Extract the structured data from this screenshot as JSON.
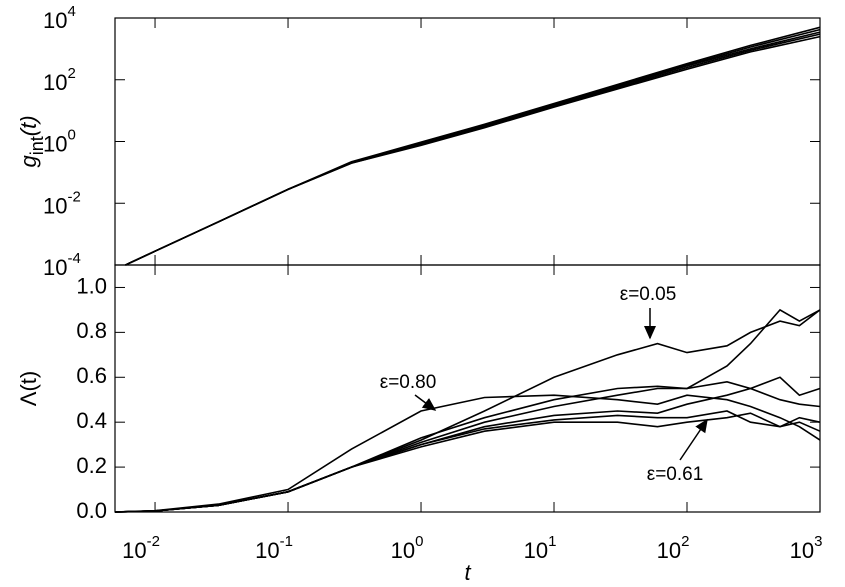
{
  "chart_data": [
    {
      "type": "line",
      "ylabel": [
        "g",
        "int",
        "(t)"
      ],
      "xlog": true,
      "ylog": true,
      "xlim": [
        0.005,
        1000
      ],
      "ylim": [
        0.0001,
        10000
      ],
      "yticks": [
        {
          "value": 0.0001,
          "label": "10",
          "exponent": "-4"
        },
        {
          "value": 0.01,
          "label": "10",
          "exponent": "-2"
        },
        {
          "value": 1,
          "label": "10",
          "exponent": "0"
        },
        {
          "value": 100,
          "label": "10",
          "exponent": "2"
        },
        {
          "value": 10000,
          "label": "10",
          "exponent": "4"
        }
      ],
      "x": [
        0.006,
        0.01,
        0.03,
        0.1,
        0.3,
        1,
        3,
        10,
        30,
        100,
        300,
        1000
      ],
      "series": [
        {
          "color": "#000000",
          "values": [
            0.0001,
            0.00028,
            0.0025,
            0.028,
            0.2,
            0.75,
            2.8,
            13,
            50,
            220,
            800,
            2500
          ]
        },
        {
          "color": "#000000",
          "values": [
            0.0001,
            0.00028,
            0.0025,
            0.028,
            0.2,
            0.8,
            3,
            14,
            55,
            250,
            900,
            3000
          ]
        },
        {
          "color": "#000000",
          "values": [
            0.0001,
            0.00028,
            0.0025,
            0.028,
            0.21,
            0.85,
            3.2,
            15,
            60,
            280,
            1000,
            3500
          ]
        },
        {
          "color": "#000000",
          "values": [
            0.0001,
            0.00028,
            0.0025,
            0.028,
            0.21,
            0.9,
            3.4,
            16,
            65,
            300,
            1150,
            4200
          ]
        },
        {
          "color": "#000000",
          "values": [
            0.0001,
            0.00028,
            0.0025,
            0.028,
            0.22,
            0.95,
            3.6,
            17,
            70,
            330,
            1300,
            5000
          ]
        }
      ]
    },
    {
      "type": "line",
      "xlabel": "t",
      "ylabel": "Λ(t)",
      "xlog": true,
      "xlim": [
        0.005,
        1000
      ],
      "ylim": [
        0,
        1.1
      ],
      "xticks": [
        {
          "value": 0.01,
          "label": "10",
          "exponent": "-2"
        },
        {
          "value": 0.1,
          "label": "10",
          "exponent": "-1"
        },
        {
          "value": 1,
          "label": "10",
          "exponent": "0"
        },
        {
          "value": 10,
          "label": "10",
          "exponent": "1"
        },
        {
          "value": 100,
          "label": "10",
          "exponent": "2"
        },
        {
          "value": 1000,
          "label": "10",
          "exponent": "3"
        }
      ],
      "yticks": [
        {
          "value": 0,
          "label": "0.0"
        },
        {
          "value": 0.2,
          "label": "0.2"
        },
        {
          "value": 0.4,
          "label": "0.4"
        },
        {
          "value": 0.6,
          "label": "0.6"
        },
        {
          "value": 0.8,
          "label": "0.8"
        },
        {
          "value": 1,
          "label": "1.0"
        }
      ],
      "x": [
        0.005,
        0.01,
        0.03,
        0.1,
        0.3,
        1,
        3,
        10,
        30,
        60,
        100,
        200,
        300,
        500,
        700,
        1000
      ],
      "series": [
        {
          "color": "#000000",
          "values": [
            0,
            0.005,
            0.03,
            0.09,
            0.2,
            0.32,
            0.45,
            0.6,
            0.7,
            0.75,
            0.71,
            0.74,
            0.8,
            0.85,
            0.83,
            0.9
          ]
        },
        {
          "color": "#000000",
          "values": [
            0,
            0.006,
            0.035,
            0.1,
            0.28,
            0.45,
            0.51,
            0.52,
            0.5,
            0.48,
            0.52,
            0.5,
            0.47,
            0.42,
            0.38,
            0.32
          ]
        },
        {
          "color": "#000000",
          "values": [
            0,
            0.005,
            0.03,
            0.09,
            0.2,
            0.33,
            0.42,
            0.5,
            0.55,
            0.56,
            0.55,
            0.65,
            0.75,
            0.9,
            0.85,
            0.9
          ]
        },
        {
          "color": "#000000",
          "values": [
            0,
            0.005,
            0.03,
            0.09,
            0.2,
            0.31,
            0.4,
            0.47,
            0.52,
            0.55,
            0.55,
            0.58,
            0.55,
            0.6,
            0.52,
            0.55
          ]
        },
        {
          "color": "#000000",
          "values": [
            0,
            0.005,
            0.03,
            0.09,
            0.2,
            0.3,
            0.38,
            0.43,
            0.45,
            0.44,
            0.48,
            0.52,
            0.55,
            0.5,
            0.48,
            0.47
          ]
        },
        {
          "color": "#000000",
          "values": [
            0,
            0.005,
            0.03,
            0.09,
            0.2,
            0.3,
            0.37,
            0.41,
            0.43,
            0.42,
            0.42,
            0.45,
            0.4,
            0.38,
            0.42,
            0.4
          ]
        },
        {
          "color": "#000000",
          "values": [
            0,
            0.005,
            0.03,
            0.09,
            0.2,
            0.29,
            0.36,
            0.4,
            0.4,
            0.38,
            0.4,
            0.42,
            0.44,
            0.38,
            0.4,
            0.36
          ]
        }
      ],
      "annotations": [
        "ε=0.05",
        "ε=0.80",
        "ε=0.61"
      ]
    }
  ]
}
